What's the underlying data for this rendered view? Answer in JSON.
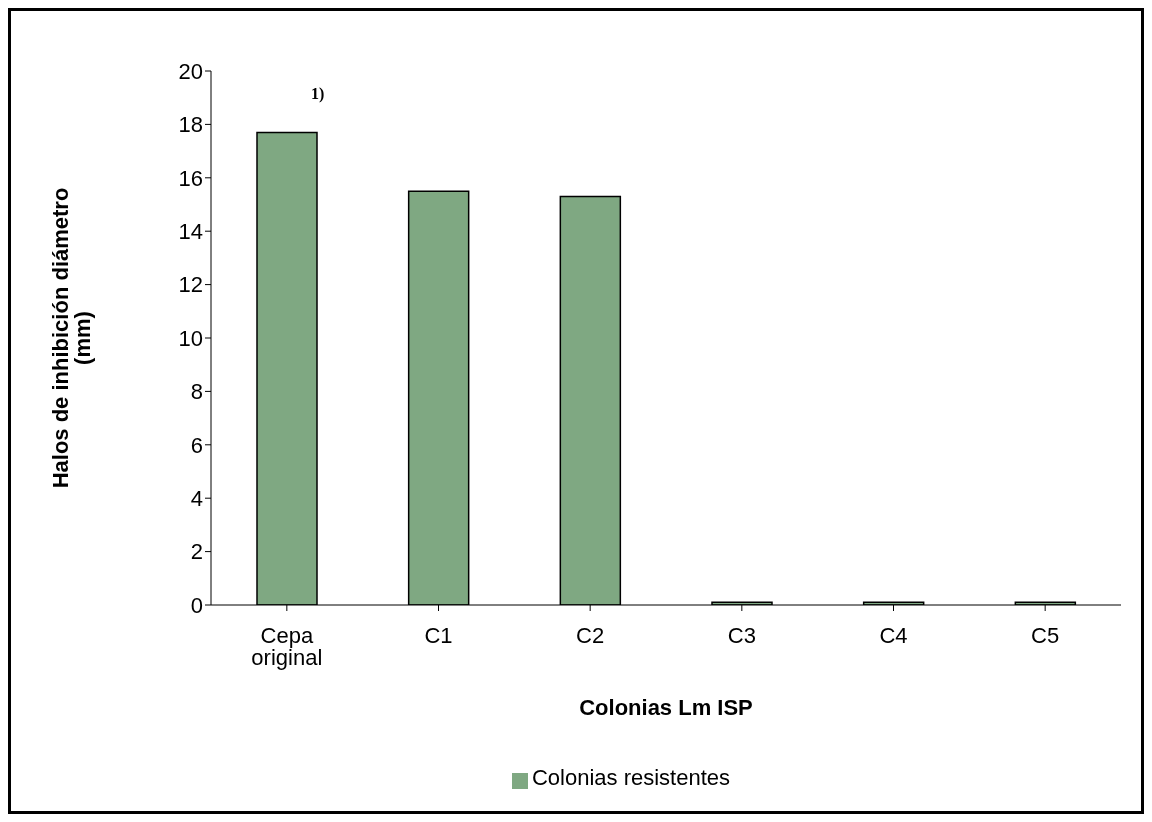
{
  "chart_data": {
    "type": "bar",
    "xlabel": "Colonias Lm ISP",
    "ylabel": "Halos de inhibición diámetro (mm)",
    "categories": [
      "Cepa original",
      "C1",
      "C2",
      "C3",
      "C4",
      "C5"
    ],
    "series": [
      {
        "name": "Colonias resistentes",
        "color": "#7fa882",
        "values": [
          17.7,
          15.5,
          15.3,
          0.1,
          0.1,
          0.1
        ]
      }
    ],
    "ylim": [
      0,
      20
    ],
    "yticks": [
      0,
      2,
      4,
      6,
      8,
      10,
      12,
      14,
      16,
      18,
      20
    ],
    "grid": false,
    "legend": "bottom",
    "annotations": [
      "1)"
    ]
  }
}
